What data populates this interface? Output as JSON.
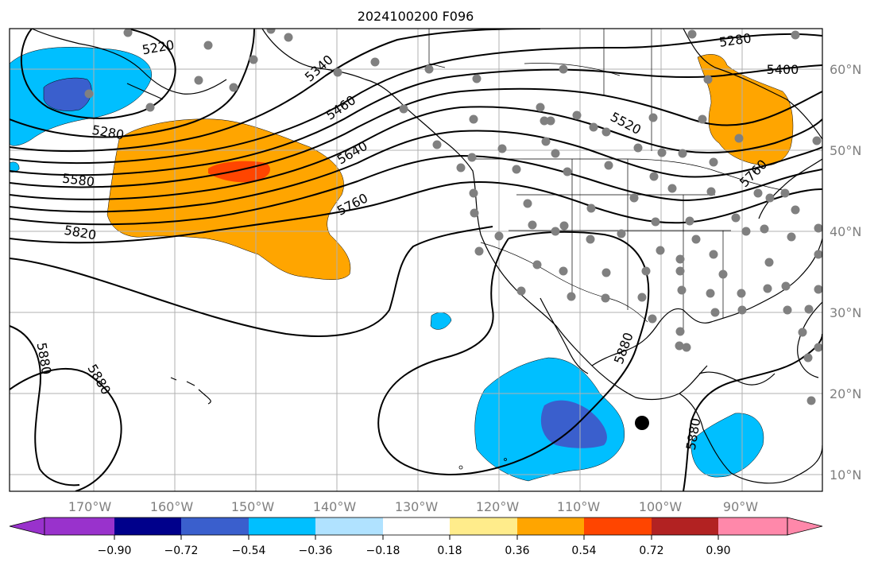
{
  "title": "2024100200 F096",
  "map": {
    "lon_labels": [
      "170°W",
      "160°W",
      "150°W",
      "140°W",
      "130°W",
      "120°W",
      "110°W",
      "100°W",
      "90°W"
    ],
    "lat_labels": [
      "60°N",
      "50°N",
      "40°N",
      "30°N",
      "20°N",
      "10°N"
    ],
    "contour_labels": [
      "5220",
      "5280",
      "5340",
      "5280",
      "5400",
      "5460",
      "5520",
      "5580",
      "5640",
      "5760",
      "5820",
      "5760",
      "5880",
      "5880",
      "5880",
      "5880"
    ],
    "colors": {
      "land_line": "#000000",
      "grid": "#b0b0b0",
      "station_dot": "#808080",
      "marker": "#000000"
    }
  },
  "colorbar": {
    "tick_labels": [
      "−0.90",
      "−0.72",
      "−0.54",
      "−0.36",
      "−0.18",
      "0.18",
      "0.36",
      "0.54",
      "0.72",
      "0.90"
    ],
    "colors": [
      "#9932CC",
      "#00008B",
      "#3A5FCD",
      "#00BFFF",
      "#B0E2FF",
      "#FFFFFF",
      "#FFEC8B",
      "#FFA500",
      "#FF4500",
      "#B22222",
      "#FF88AA"
    ]
  }
}
